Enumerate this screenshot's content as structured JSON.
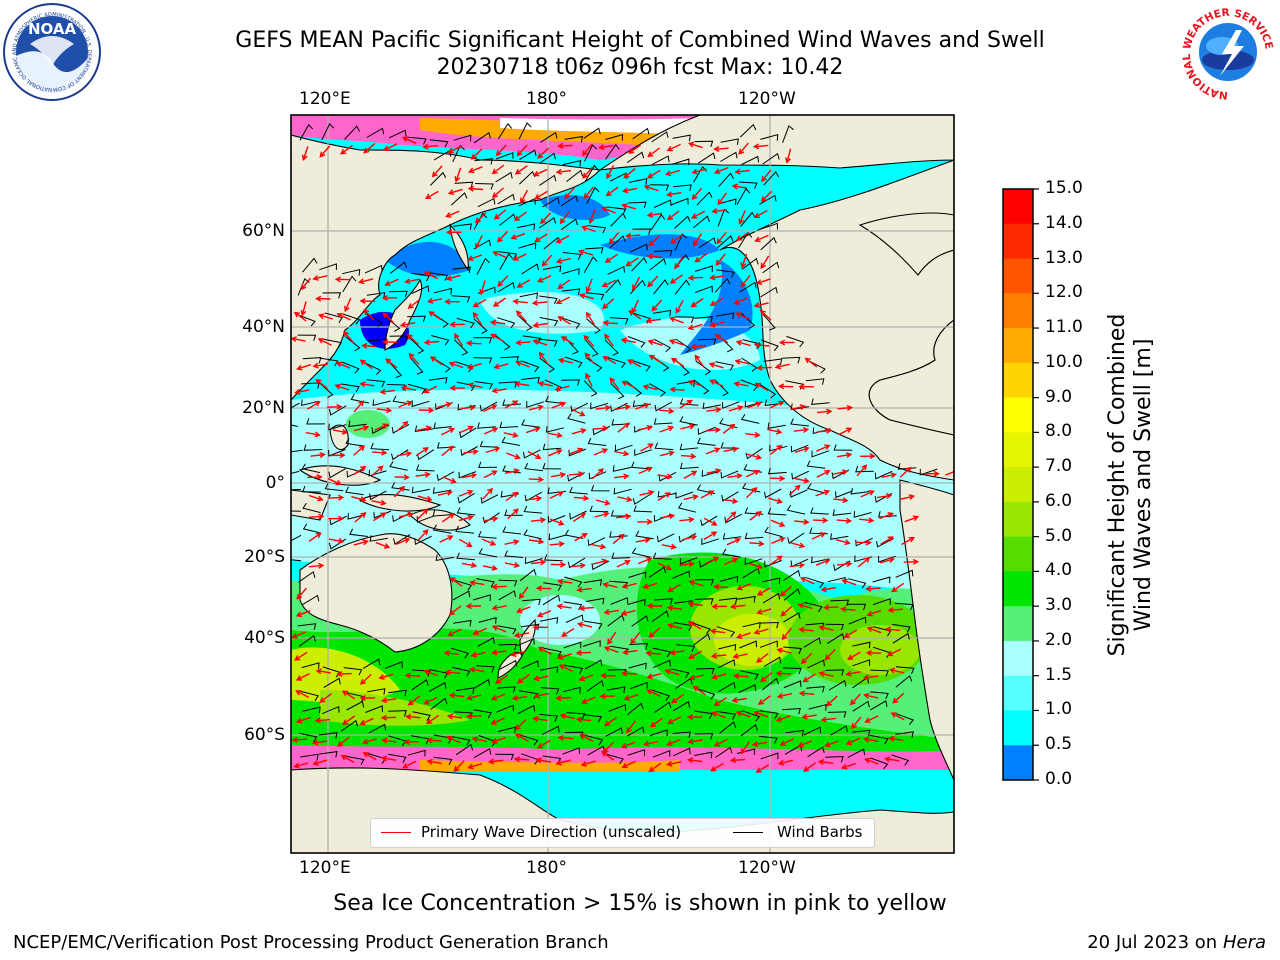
{
  "header": {
    "title_line1": "GEFS MEAN Pacific Significant Height of Combined Wind Waves and Swell",
    "title_line2": "20230718 t06z 096h fcst   Max: 10.42"
  },
  "logos": {
    "left": {
      "name": "noaa-logo",
      "text": "NOAA",
      "ring_text": "NATIONAL OCEANIC AND ATMOSPHERIC ADMINISTRATION · U.S. DEPARTMENT OF COMMERCE"
    },
    "right": {
      "name": "nws-logo",
      "ring_text": "NATIONAL WEATHER SERVICE"
    }
  },
  "map": {
    "top_lon_labels": [
      "120°E",
      "180°",
      "120°W"
    ],
    "bottom_lon_labels": [
      "120°E",
      "180°",
      "120°W"
    ],
    "lat_labels": [
      "60°N",
      "40°N",
      "20°N",
      "0°",
      "20°S",
      "40°S",
      "60°S"
    ],
    "colors": {
      "land": "#efedd9",
      "ice_edge": "#ff66cc",
      "wave_arrow": "#ff0000",
      "wind_barb": "#000000"
    }
  },
  "legend": {
    "wave_label": "Primary Wave Direction (unscaled)",
    "barb_label": "Wind Barbs"
  },
  "colorbar": {
    "label_line1": "Significant Height of Combined",
    "label_line2": "Wind Waves and Swell [m]",
    "ticks": [
      "15.0",
      "14.0",
      "13.0",
      "12.0",
      "11.0",
      "10.0",
      "9.0",
      "8.0",
      "7.0",
      "6.0",
      "5.0",
      "4.0",
      "3.0",
      "2.0",
      "1.5",
      "1.0",
      "0.5",
      "0.0"
    ],
    "colors": [
      "#ff0000",
      "#ff2a00",
      "#ff5500",
      "#ff8000",
      "#ffaa00",
      "#ffd400",
      "#ffff00",
      "#e5f500",
      "#ccee00",
      "#99e600",
      "#55dd00",
      "#00e600",
      "#55f07a",
      "#aaffff",
      "#55ffff",
      "#00ffff",
      "#0080ff",
      "#0000ff"
    ]
  },
  "footer": {
    "note": "Sea Ice Concentration > 15% is shown in pink to yellow",
    "left": "NCEP/EMC/Verification Post Processing Product Generation Branch",
    "right_prefix": "20 Jul 2023 on ",
    "right_system": "Hera"
  }
}
